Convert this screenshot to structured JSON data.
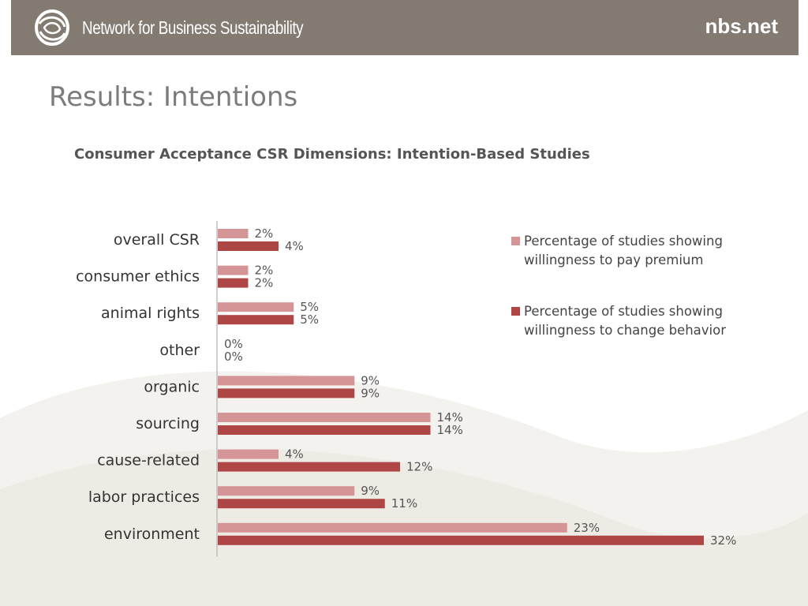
{
  "header": {
    "org_name": "Network for Business Sustainability",
    "site_link": "nbs.net",
    "logo_icon": "nbs-swirl-logo-icon"
  },
  "page": {
    "title": "Results: Intentions"
  },
  "colors": {
    "header_bg": "#837b72",
    "premium_series": "#d59496",
    "behavior_series": "#ae4646",
    "axis": "#bfbfbf",
    "text": "#333333"
  },
  "chart_data": {
    "type": "bar",
    "orientation": "horizontal",
    "title": "Consumer Acceptance CSR Dimensions: Intention-Based Studies",
    "categories": [
      "overall CSR",
      "consumer ethics",
      "animal rights",
      "other",
      "organic",
      "sourcing",
      "cause-related",
      "labor practices",
      "environment"
    ],
    "series": [
      {
        "name": "Percentage of studies showing willingness to pay premium",
        "values": [
          2,
          2,
          5,
          0,
          9,
          14,
          4,
          9,
          23
        ],
        "labels": [
          "2%",
          "2%",
          "5%",
          "0%",
          "9%",
          "14%",
          "4%",
          "9%",
          "23%"
        ],
        "color": "#d59496"
      },
      {
        "name": "Percentage of studies showing willingness to change behavior",
        "values": [
          4,
          2,
          5,
          0,
          9,
          14,
          12,
          11,
          32
        ],
        "labels": [
          "4%",
          "2%",
          "5%",
          "0%",
          "9%",
          "14%",
          "12%",
          "11%",
          "32%"
        ],
        "color": "#ae4646"
      }
    ],
    "xlim": [
      0,
      32
    ],
    "grid": false,
    "legend_position": "right",
    "data_labels": true
  }
}
